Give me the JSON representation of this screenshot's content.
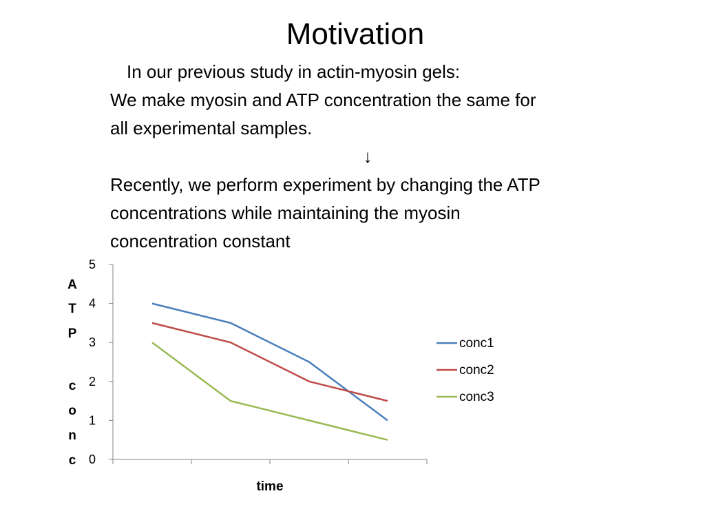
{
  "slide": {
    "title": "Motivation",
    "lines": [
      "In our previous study in actin-myosin gels:",
      "We make myosin and ATP concentration the same  for",
      "all experimental samples.",
      "↓",
      "Recently, we perform experiment by changing the ATP",
      "concentrations while maintaining the myosin",
      "concentration constant"
    ]
  },
  "chart_data": {
    "type": "line",
    "xlabel": "time",
    "ylabel": "ATP conc",
    "ylabel_letters": [
      "A",
      "T",
      "P",
      "",
      "c",
      "o",
      "n",
      "c"
    ],
    "ylim": [
      0,
      5
    ],
    "yticks": [
      0,
      1,
      2,
      3,
      4,
      5
    ],
    "x": [
      1,
      2,
      3,
      4
    ],
    "legend_position": "right",
    "grid": false,
    "series": [
      {
        "name": "conc1",
        "color": "#4a7ebb",
        "values": [
          4,
          3.5,
          2.5,
          1
        ]
      },
      {
        "name": "conc2",
        "color": "#be4b48",
        "values": [
          3.5,
          3,
          2,
          1.5
        ]
      },
      {
        "name": "conc3",
        "color": "#98b954",
        "values": [
          3,
          1.5,
          1,
          0.5
        ]
      }
    ]
  }
}
